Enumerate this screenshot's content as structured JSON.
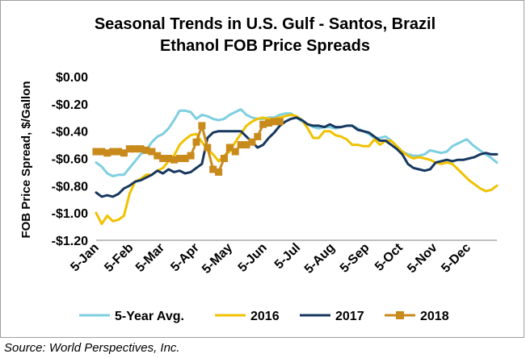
{
  "chart_data": {
    "type": "line",
    "title_line1": "Seasonal Trends in U.S. Gulf - Santos, Brazil",
    "title_line2": "Ethanol FOB Price Spreads",
    "ylabel": "FOB Price Spread, $/Gallon",
    "xlabel": "",
    "ylim": [
      -1.2,
      0.0
    ],
    "y_ticks": [
      0.0,
      -0.2,
      -0.4,
      -0.6,
      -0.8,
      -1.0,
      -1.2
    ],
    "y_tick_labels": [
      "$0.00",
      "-$0.20",
      "-$0.40",
      "-$0.60",
      "-$0.80",
      "-$1.00",
      "-$1.20"
    ],
    "x_range": [
      0,
      360
    ],
    "x_ticks": [
      0,
      31,
      59,
      90,
      120,
      151,
      181,
      212,
      243,
      273,
      304,
      334
    ],
    "x_tick_labels": [
      "5-Jan",
      "5-Feb",
      "5-Mar",
      "5-Apr",
      "5-May",
      "5-Jun",
      "5-Jul",
      "5-Aug",
      "5-Sep",
      "5-Oct",
      "5-Nov",
      "5-Dec"
    ],
    "gridlines": false,
    "legend_position": "bottom",
    "series": [
      {
        "name": "5-Year Avg.",
        "color": "#7ecfe0",
        "marker": "none",
        "points": [
          [
            0,
            -0.63
          ],
          [
            5,
            -0.66
          ],
          [
            10,
            -0.71
          ],
          [
            15,
            -0.73
          ],
          [
            20,
            -0.72
          ],
          [
            25,
            -0.72
          ],
          [
            30,
            -0.67
          ],
          [
            35,
            -0.62
          ],
          [
            40,
            -0.57
          ],
          [
            45,
            -0.54
          ],
          [
            50,
            -0.48
          ],
          [
            55,
            -0.44
          ],
          [
            60,
            -0.42
          ],
          [
            65,
            -0.38
          ],
          [
            70,
            -0.32
          ],
          [
            75,
            -0.25
          ],
          [
            80,
            -0.25
          ],
          [
            85,
            -0.26
          ],
          [
            90,
            -0.31
          ],
          [
            95,
            -0.28
          ],
          [
            100,
            -0.29
          ],
          [
            105,
            -0.31
          ],
          [
            110,
            -0.32
          ],
          [
            115,
            -0.31
          ],
          [
            120,
            -0.28
          ],
          [
            125,
            -0.26
          ],
          [
            130,
            -0.24
          ],
          [
            135,
            -0.28
          ],
          [
            140,
            -0.3
          ],
          [
            145,
            -0.31
          ],
          [
            150,
            -0.31
          ],
          [
            155,
            -0.3
          ],
          [
            160,
            -0.3
          ],
          [
            165,
            -0.28
          ],
          [
            170,
            -0.27
          ],
          [
            175,
            -0.27
          ],
          [
            180,
            -0.3
          ],
          [
            185,
            -0.33
          ],
          [
            190,
            -0.35
          ],
          [
            195,
            -0.37
          ],
          [
            200,
            -0.38
          ],
          [
            205,
            -0.37
          ],
          [
            210,
            -0.37
          ],
          [
            215,
            -0.38
          ],
          [
            220,
            -0.37
          ],
          [
            225,
            -0.36
          ],
          [
            230,
            -0.36
          ],
          [
            235,
            -0.38
          ],
          [
            240,
            -0.4
          ],
          [
            245,
            -0.42
          ],
          [
            250,
            -0.45
          ],
          [
            255,
            -0.45
          ],
          [
            260,
            -0.44
          ],
          [
            265,
            -0.47
          ],
          [
            270,
            -0.51
          ],
          [
            275,
            -0.55
          ],
          [
            280,
            -0.57
          ],
          [
            285,
            -0.58
          ],
          [
            290,
            -0.58
          ],
          [
            295,
            -0.57
          ],
          [
            300,
            -0.54
          ],
          [
            305,
            -0.55
          ],
          [
            310,
            -0.56
          ],
          [
            315,
            -0.55
          ],
          [
            320,
            -0.51
          ],
          [
            325,
            -0.49
          ],
          [
            330,
            -0.47
          ],
          [
            333,
            -0.46
          ],
          [
            338,
            -0.5
          ],
          [
            343,
            -0.53
          ],
          [
            348,
            -0.56
          ],
          [
            354,
            -0.59
          ],
          [
            360,
            -0.63
          ]
        ]
      },
      {
        "name": "2016",
        "color": "#f0c200",
        "marker": "none",
        "points": [
          [
            0,
            -1.0
          ],
          [
            5,
            -1.08
          ],
          [
            10,
            -1.02
          ],
          [
            15,
            -1.06
          ],
          [
            20,
            -1.05
          ],
          [
            25,
            -1.02
          ],
          [
            30,
            -0.86
          ],
          [
            35,
            -0.77
          ],
          [
            40,
            -0.75
          ],
          [
            45,
            -0.72
          ],
          [
            50,
            -0.72
          ],
          [
            55,
            -0.69
          ],
          [
            60,
            -0.67
          ],
          [
            65,
            -0.62
          ],
          [
            70,
            -0.58
          ],
          [
            75,
            -0.5
          ],
          [
            80,
            -0.46
          ],
          [
            85,
            -0.43
          ],
          [
            90,
            -0.42
          ],
          [
            95,
            -0.48
          ],
          [
            100,
            -0.53
          ],
          [
            105,
            -0.57
          ],
          [
            110,
            -0.62
          ],
          [
            115,
            -0.58
          ],
          [
            120,
            -0.55
          ],
          [
            125,
            -0.48
          ],
          [
            130,
            -0.42
          ],
          [
            135,
            -0.36
          ],
          [
            140,
            -0.33
          ],
          [
            145,
            -0.31
          ],
          [
            150,
            -0.3
          ],
          [
            155,
            -0.31
          ],
          [
            160,
            -0.31
          ],
          [
            165,
            -0.3
          ],
          [
            170,
            -0.29
          ],
          [
            175,
            -0.28
          ],
          [
            180,
            -0.29
          ],
          [
            185,
            -0.32
          ],
          [
            190,
            -0.38
          ],
          [
            195,
            -0.45
          ],
          [
            200,
            -0.45
          ],
          [
            205,
            -0.4
          ],
          [
            210,
            -0.4
          ],
          [
            215,
            -0.43
          ],
          [
            220,
            -0.44
          ],
          [
            225,
            -0.46
          ],
          [
            230,
            -0.5
          ],
          [
            235,
            -0.5
          ],
          [
            240,
            -0.51
          ],
          [
            245,
            -0.51
          ],
          [
            250,
            -0.46
          ],
          [
            255,
            -0.5
          ],
          [
            260,
            -0.47
          ],
          [
            265,
            -0.47
          ],
          [
            270,
            -0.51
          ],
          [
            275,
            -0.55
          ],
          [
            280,
            -0.58
          ],
          [
            285,
            -0.6
          ],
          [
            290,
            -0.59
          ],
          [
            295,
            -0.6
          ],
          [
            300,
            -0.61
          ],
          [
            305,
            -0.63
          ],
          [
            310,
            -0.64
          ],
          [
            315,
            -0.63
          ],
          [
            320,
            -0.64
          ],
          [
            325,
            -0.68
          ],
          [
            330,
            -0.72
          ],
          [
            335,
            -0.76
          ],
          [
            340,
            -0.79
          ],
          [
            345,
            -0.82
          ],
          [
            350,
            -0.84
          ],
          [
            355,
            -0.83
          ],
          [
            360,
            -0.8
          ]
        ]
      },
      {
        "name": "2017",
        "color": "#17375e",
        "marker": "none",
        "points": [
          [
            0,
            -0.85
          ],
          [
            5,
            -0.88
          ],
          [
            10,
            -0.87
          ],
          [
            15,
            -0.88
          ],
          [
            20,
            -0.86
          ],
          [
            25,
            -0.82
          ],
          [
            30,
            -0.8
          ],
          [
            35,
            -0.77
          ],
          [
            40,
            -0.76
          ],
          [
            45,
            -0.74
          ],
          [
            50,
            -0.72
          ],
          [
            55,
            -0.69
          ],
          [
            60,
            -0.71
          ],
          [
            65,
            -0.68
          ],
          [
            70,
            -0.7
          ],
          [
            75,
            -0.69
          ],
          [
            80,
            -0.71
          ],
          [
            85,
            -0.7
          ],
          [
            90,
            -0.67
          ],
          [
            95,
            -0.64
          ],
          [
            100,
            -0.45
          ],
          [
            105,
            -0.41
          ],
          [
            110,
            -0.4
          ],
          [
            115,
            -0.4
          ],
          [
            120,
            -0.4
          ],
          [
            125,
            -0.4
          ],
          [
            130,
            -0.4
          ],
          [
            135,
            -0.44
          ],
          [
            140,
            -0.48
          ],
          [
            145,
            -0.52
          ],
          [
            150,
            -0.5
          ],
          [
            155,
            -0.45
          ],
          [
            160,
            -0.41
          ],
          [
            165,
            -0.36
          ],
          [
            170,
            -0.33
          ],
          [
            175,
            -0.31
          ],
          [
            180,
            -0.3
          ],
          [
            185,
            -0.32
          ],
          [
            190,
            -0.35
          ],
          [
            195,
            -0.36
          ],
          [
            200,
            -0.36
          ],
          [
            205,
            -0.37
          ],
          [
            210,
            -0.35
          ],
          [
            215,
            -0.37
          ],
          [
            220,
            -0.37
          ],
          [
            225,
            -0.36
          ],
          [
            230,
            -0.36
          ],
          [
            235,
            -0.39
          ],
          [
            240,
            -0.4
          ],
          [
            245,
            -0.41
          ],
          [
            250,
            -0.44
          ],
          [
            255,
            -0.47
          ],
          [
            260,
            -0.47
          ],
          [
            265,
            -0.5
          ],
          [
            270,
            -0.53
          ],
          [
            275,
            -0.57
          ],
          [
            280,
            -0.64
          ],
          [
            285,
            -0.67
          ],
          [
            290,
            -0.68
          ],
          [
            295,
            -0.69
          ],
          [
            300,
            -0.68
          ],
          [
            305,
            -0.63
          ],
          [
            310,
            -0.62
          ],
          [
            315,
            -0.61
          ],
          [
            320,
            -0.62
          ],
          [
            325,
            -0.61
          ],
          [
            330,
            -0.61
          ],
          [
            335,
            -0.6
          ],
          [
            340,
            -0.59
          ],
          [
            345,
            -0.57
          ],
          [
            350,
            -0.56
          ],
          [
            355,
            -0.57
          ],
          [
            360,
            -0.57
          ]
        ]
      },
      {
        "name": "2018",
        "color": "#c98a1c",
        "marker": "square",
        "points": [
          [
            0,
            -0.55
          ],
          [
            5,
            -0.55
          ],
          [
            10,
            -0.56
          ],
          [
            15,
            -0.55
          ],
          [
            20,
            -0.55
          ],
          [
            25,
            -0.56
          ],
          [
            30,
            -0.53
          ],
          [
            35,
            -0.53
          ],
          [
            40,
            -0.53
          ],
          [
            45,
            -0.54
          ],
          [
            50,
            -0.55
          ],
          [
            55,
            -0.58
          ],
          [
            60,
            -0.6
          ],
          [
            65,
            -0.6
          ],
          [
            70,
            -0.61
          ],
          [
            75,
            -0.6
          ],
          [
            80,
            -0.6
          ],
          [
            85,
            -0.58
          ],
          [
            90,
            -0.48
          ],
          [
            95,
            -0.36
          ],
          [
            100,
            -0.52
          ],
          [
            105,
            -0.68
          ],
          [
            110,
            -0.7
          ],
          [
            115,
            -0.6
          ],
          [
            120,
            -0.52
          ],
          [
            125,
            -0.55
          ],
          [
            130,
            -0.5
          ],
          [
            135,
            -0.5
          ],
          [
            140,
            -0.48
          ],
          [
            145,
            -0.44
          ],
          [
            150,
            -0.35
          ],
          [
            155,
            -0.34
          ],
          [
            160,
            -0.33
          ],
          [
            165,
            -0.33
          ]
        ]
      }
    ]
  },
  "source": "Source: World Perspectives, Inc."
}
